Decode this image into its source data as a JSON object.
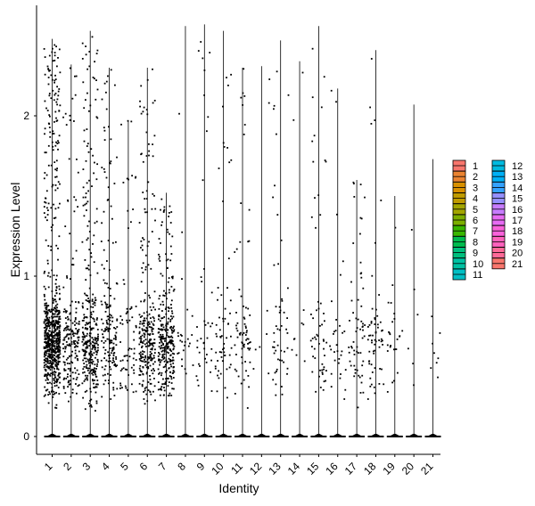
{
  "chart_data": {
    "type": "violin",
    "xlabel": "Identity",
    "ylabel": "Expression Level",
    "ylim": [
      -0.1,
      2.7
    ],
    "yticks": [
      "0",
      "1",
      "2"
    ],
    "categories": [
      "1",
      "2",
      "3",
      "4",
      "5",
      "6",
      "7",
      "8",
      "9",
      "10",
      "11",
      "12",
      "13",
      "14",
      "15",
      "16",
      "17",
      "18",
      "19",
      "20",
      "21"
    ],
    "max_values": [
      2.48,
      2.32,
      2.53,
      2.3,
      1.97,
      2.3,
      1.52,
      2.56,
      2.57,
      2.53,
      2.3,
      2.31,
      2.47,
      2.34,
      2.56,
      2.17,
      1.6,
      2.41,
      1.5,
      2.07,
      1.73
    ],
    "point_density": [
      720,
      190,
      330,
      170,
      70,
      260,
      290,
      25,
      40,
      60,
      70,
      8,
      50,
      10,
      55,
      30,
      60,
      60,
      25,
      6,
      8
    ],
    "baseline_value": 0,
    "legend": {
      "columns": [
        [
          "1",
          "2",
          "3",
          "4",
          "5",
          "6",
          "7",
          "8",
          "9",
          "10",
          "11"
        ],
        [
          "12",
          "13",
          "14",
          "15",
          "16",
          "17",
          "18",
          "19",
          "20",
          "21"
        ]
      ]
    },
    "colors": [
      "#F8766D",
      "#EA8331",
      "#D89000",
      "#C09B00",
      "#A3A500",
      "#7CAE00",
      "#39B600",
      "#00BB4E",
      "#00BF7D",
      "#00C1A3",
      "#00BFC4",
      "#00BAE0",
      "#00B0F6",
      "#35A2FF",
      "#9590FF",
      "#C77CFF",
      "#E76BF3",
      "#FA62DB",
      "#FF62BC",
      "#FF6A98",
      "#F8766D"
    ],
    "grid": false,
    "legend_position": "right"
  }
}
